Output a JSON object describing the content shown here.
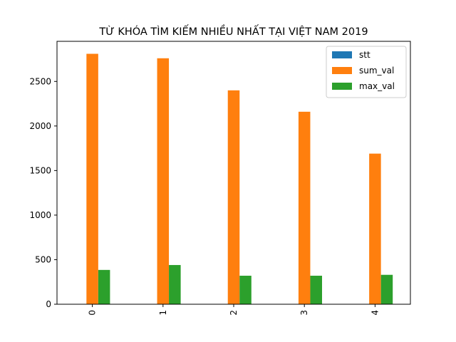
{
  "chart_data": {
    "type": "bar",
    "title": "TỪ KHÓA TÌM KIẾM NHIỀU NHẤT TẠI VIỆT NAM 2019",
    "xlabel": "",
    "ylabel": "",
    "categories": [
      "0",
      "1",
      "2",
      "3",
      "4"
    ],
    "series": [
      {
        "name": "stt",
        "color": "#1f77b4",
        "values": [
          0,
          1,
          2,
          3,
          4
        ]
      },
      {
        "name": "sum_val",
        "color": "#ff7f0e",
        "values": [
          2810,
          2760,
          2400,
          2160,
          1690
        ]
      },
      {
        "name": "max_val",
        "color": "#2ca02c",
        "values": [
          385,
          440,
          320,
          320,
          330
        ]
      }
    ],
    "ylim": [
      0,
      2950
    ],
    "yticks": [
      0,
      500,
      1000,
      1500,
      2000,
      2500
    ],
    "grid": false,
    "legend_position": "top-right"
  }
}
